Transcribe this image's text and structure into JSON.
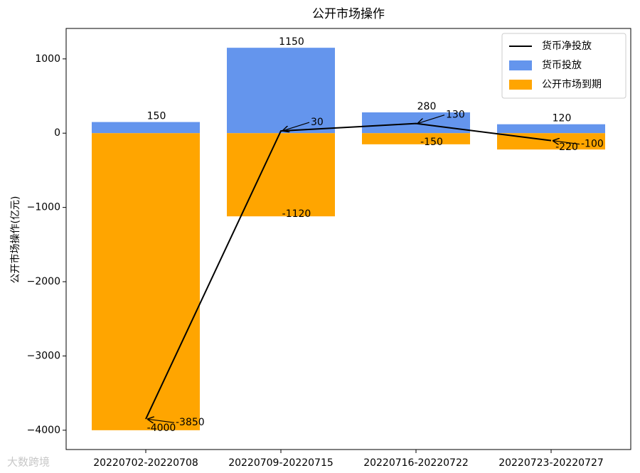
{
  "chart_data": {
    "type": "bar",
    "title": "公开市场操作",
    "y_label": "公开市场操作(亿元)",
    "categories": [
      "20220702-20220708",
      "20220709-20220715",
      "20220716-20220722",
      "20220723-20220727"
    ],
    "series": [
      {
        "name": "货币净投放",
        "type": "line",
        "color": "#000000",
        "values": [
          -3850,
          30,
          130,
          -100
        ]
      },
      {
        "name": "货币投放",
        "type": "bar",
        "color": "#6495ed",
        "values": [
          150,
          1150,
          280,
          120
        ]
      },
      {
        "name": "公开市场到期",
        "type": "bar",
        "color": "#ffa500",
        "values": [
          -4000,
          -1120,
          -150,
          -220
        ]
      }
    ],
    "ylim": [
      -4260,
      1410
    ],
    "yticks": [
      {
        "value": -4000,
        "label": "−4000"
      },
      {
        "value": -3000,
        "label": "−3000"
      },
      {
        "value": -2000,
        "label": "−2000"
      },
      {
        "value": -1000,
        "label": "−1000"
      },
      0,
      1000
    ],
    "legend": "upper right",
    "watermark": "大数跨境"
  }
}
